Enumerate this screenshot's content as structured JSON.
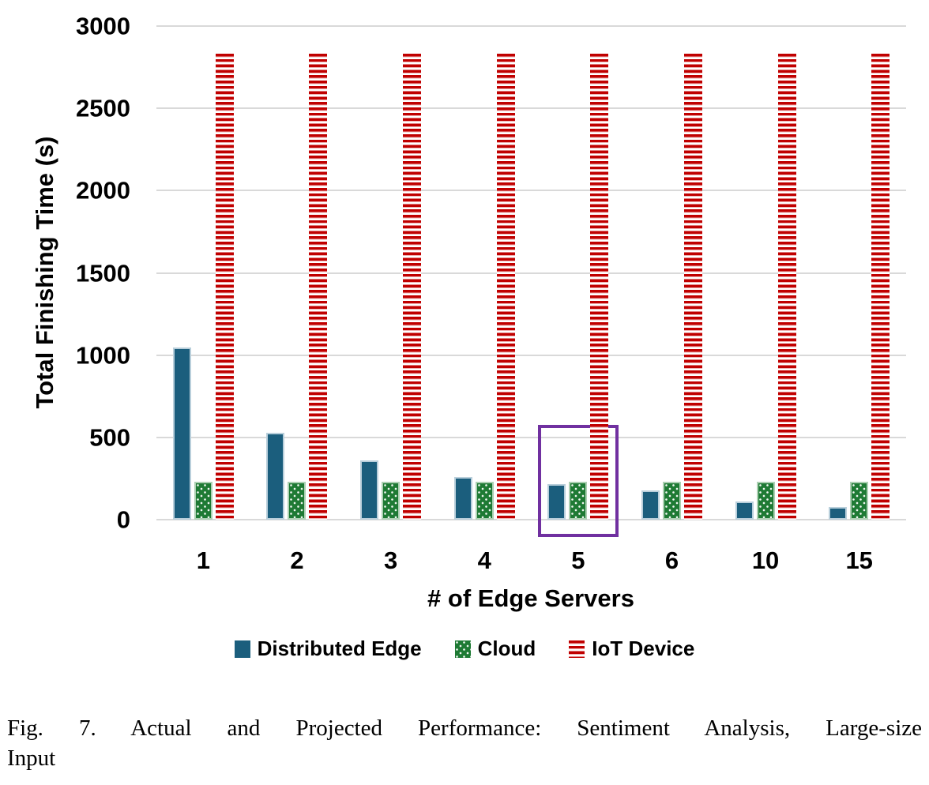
{
  "figure": {
    "caption_line1": "Fig. 7.   Actual and Projected Performance: Sentiment Analysis, Large-size",
    "caption_line2": "Input"
  },
  "chart_data": {
    "type": "bar",
    "title": "",
    "xlabel": "# of Edge Servers",
    "ylabel": "Total Finishing Time (s)",
    "categories": [
      "1",
      "2",
      "3",
      "4",
      "5",
      "6",
      "10",
      "15"
    ],
    "series": [
      {
        "name": "Distributed Edge",
        "color": "#1b5e7d",
        "pattern": "solid",
        "values": [
          1045,
          530,
          360,
          260,
          215,
          180,
          110,
          75
        ]
      },
      {
        "name": "Cloud",
        "color": "#1e7a34",
        "pattern": "dots",
        "values": [
          230,
          230,
          230,
          230,
          230,
          230,
          230,
          230
        ]
      },
      {
        "name": "IoT Device",
        "color": "#c00000",
        "pattern": "hstripes",
        "values": [
          2830,
          2830,
          2830,
          2830,
          2830,
          2830,
          2830,
          2830
        ]
      }
    ],
    "ylim": [
      0,
      3000
    ],
    "yticks": [
      0,
      500,
      1000,
      1500,
      2000,
      2500,
      3000
    ],
    "grid": true,
    "grid_color": "#d9d9d9",
    "legend_position": "bottom",
    "annotation": {
      "type": "highlight-box",
      "category": "5",
      "color": "#7030a0",
      "top_value": 575
    }
  }
}
